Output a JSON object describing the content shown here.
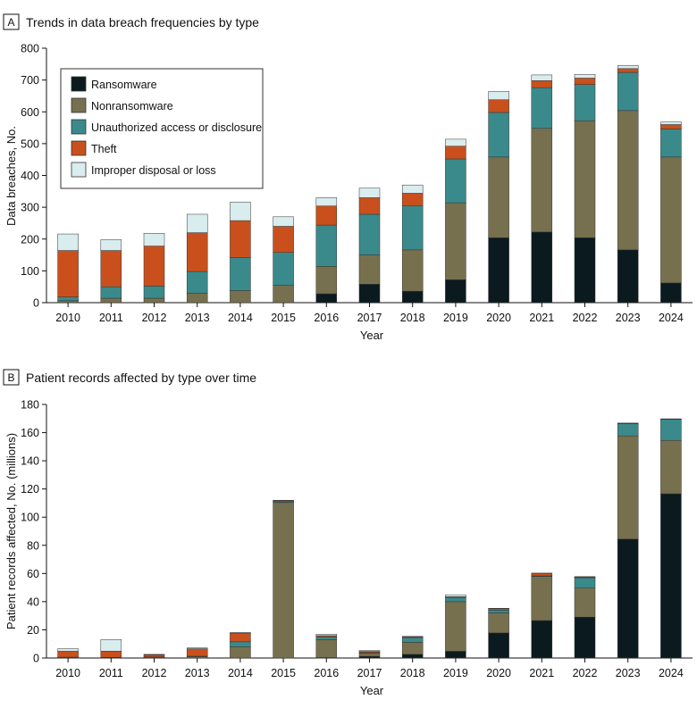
{
  "colors": {
    "Ransomware": "#0b1a1e",
    "Nonransomware": "#77704f",
    "Unauthorized access or disclosure": "#3a8a8c",
    "Theft": "#c9501c",
    "Improper disposal or loss": "#d9ecee"
  },
  "chart_data": [
    {
      "type": "bar",
      "stacked": true,
      "panel_label": "A",
      "title": "Trends in data breach frequencies by type",
      "xlabel": "Year",
      "ylabel": "Data breaches, No.",
      "ylim": [
        0,
        800
      ],
      "yticks": [
        "0",
        "100",
        "200",
        "300",
        "400",
        "500",
        "600",
        "700",
        "800"
      ],
      "legend": "top-left",
      "categories": [
        "2010",
        "2011",
        "2012",
        "2013",
        "2014",
        "2015",
        "2016",
        "2017",
        "2018",
        "2019",
        "2020",
        "2021",
        "2022",
        "2023",
        "2024"
      ],
      "series": [
        {
          "name": "Ransomware",
          "values": [
            0,
            0,
            0,
            0,
            0,
            0,
            28,
            58,
            36,
            72,
            204,
            222,
            204,
            166,
            62
          ]
        },
        {
          "name": "Nonransomware",
          "values": [
            6,
            14,
            14,
            30,
            38,
            54,
            86,
            92,
            130,
            242,
            254,
            326,
            368,
            438,
            396
          ]
        },
        {
          "name": "Unauthorized access or disclosure",
          "values": [
            12,
            36,
            38,
            68,
            104,
            104,
            130,
            128,
            138,
            138,
            140,
            128,
            114,
            120,
            88
          ]
        },
        {
          "name": "Theft",
          "values": [
            146,
            114,
            126,
            122,
            116,
            82,
            60,
            52,
            40,
            40,
            40,
            22,
            20,
            12,
            14
          ]
        },
        {
          "name": "Improper disposal or loss",
          "values": [
            52,
            34,
            40,
            58,
            58,
            30,
            26,
            30,
            26,
            22,
            26,
            18,
            12,
            10,
            8
          ]
        }
      ]
    },
    {
      "type": "bar",
      "stacked": true,
      "panel_label": "B",
      "title": "Patient records affected by type over time",
      "xlabel": "Year",
      "ylabel": "Patient records affected, No. (millions)",
      "ylim": [
        0,
        180
      ],
      "yticks": [
        "0",
        "20",
        "40",
        "60",
        "80",
        "100",
        "120",
        "140",
        "160",
        "180"
      ],
      "categories": [
        "2010",
        "2011",
        "2012",
        "2013",
        "2014",
        "2015",
        "2016",
        "2017",
        "2018",
        "2019",
        "2020",
        "2021",
        "2022",
        "2023",
        "2024"
      ],
      "series": [
        {
          "name": "Ransomware",
          "values": [
            0,
            0,
            0,
            0,
            0,
            0,
            0.3,
            1.2,
            2.6,
            4.8,
            17.8,
            26.6,
            29,
            84.4,
            116.6
          ]
        },
        {
          "name": "Nonransomware",
          "values": [
            0.4,
            0.2,
            0.5,
            1,
            8,
            110.4,
            12.7,
            2.3,
            8.5,
            35.2,
            14.2,
            31.3,
            20.6,
            73.3,
            37.9
          ]
        },
        {
          "name": "Unauthorized access or disclosure",
          "values": [
            0.2,
            0.3,
            0.3,
            0.3,
            3.5,
            0.6,
            2,
            0.4,
            3.4,
            3.1,
            2,
            0.4,
            7.4,
            8.6,
            14.9
          ]
        },
        {
          "name": "Theft",
          "values": [
            4.2,
            4.4,
            1.5,
            5.3,
            6.2,
            0.8,
            0.9,
            0.8,
            0.5,
            0.4,
            1,
            1.8,
            0.5,
            0.3,
            0.2
          ]
        },
        {
          "name": "Improper disposal or loss",
          "values": [
            1.8,
            8.2,
            0.3,
            0.6,
            0.4,
            0.2,
            1,
            0.6,
            0.4,
            1.4,
            0.3,
            0.2,
            0.3,
            0.2,
            0.2
          ]
        }
      ]
    }
  ]
}
